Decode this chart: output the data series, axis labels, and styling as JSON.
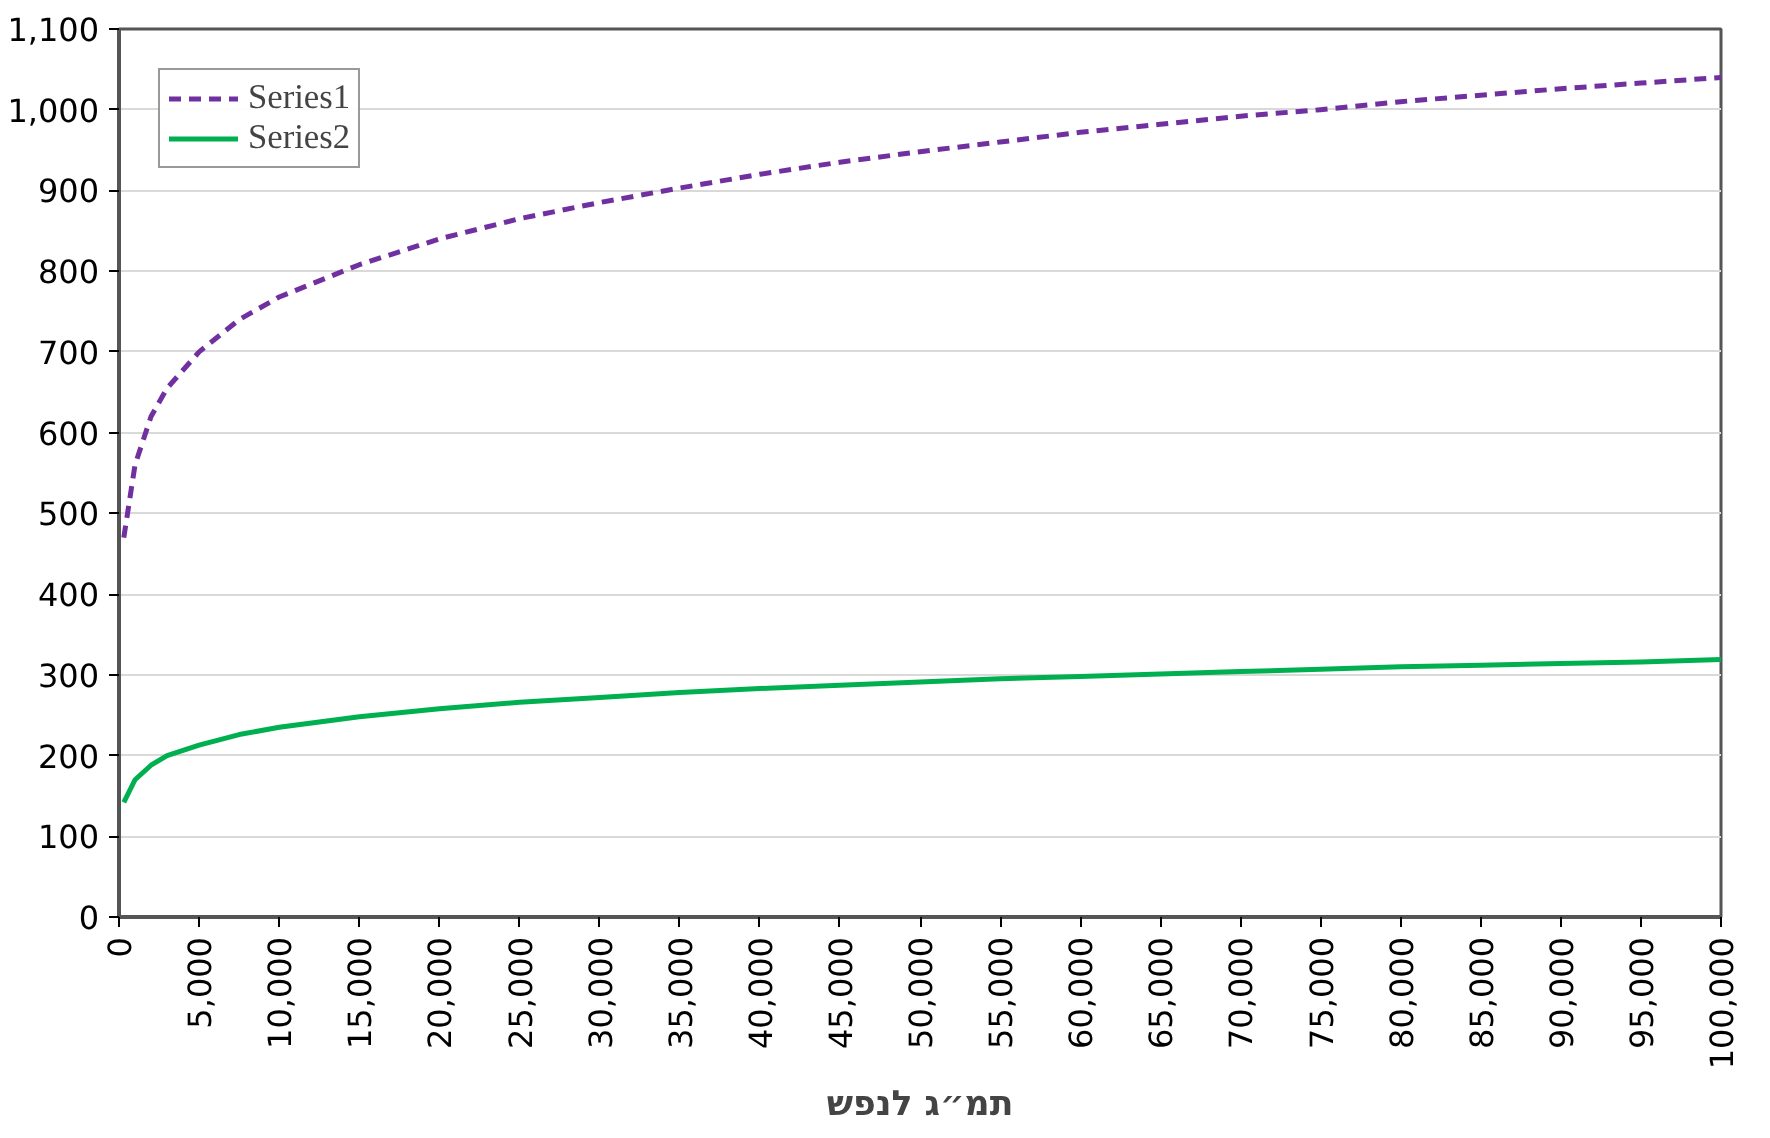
{
  "chart_data": {
    "type": "line",
    "xlabel": "תמ״ג לנפש",
    "x": [
      300,
      1000,
      2000,
      3000,
      5000,
      7500,
      10000,
      15000,
      20000,
      25000,
      30000,
      35000,
      40000,
      45000,
      50000,
      55000,
      60000,
      65000,
      70000,
      75000,
      80000,
      85000,
      90000,
      95000,
      100000
    ],
    "series": [
      {
        "name": "Series1",
        "color": "#7030a0",
        "line_style": "dashed",
        "values": [
          470,
          560,
          620,
          655,
          700,
          740,
          768,
          808,
          840,
          865,
          885,
          903,
          920,
          935,
          948,
          960,
          972,
          982,
          992,
          1000,
          1010,
          1018,
          1026,
          1033,
          1040
        ]
      },
      {
        "name": "Series2",
        "color": "#00b050",
        "line_style": "solid",
        "values": [
          142,
          170,
          188,
          200,
          213,
          226,
          235,
          248,
          258,
          266,
          272,
          278,
          283,
          287,
          291,
          295,
          298,
          301,
          304,
          307,
          310,
          312,
          314,
          316,
          319
        ]
      }
    ],
    "xlim": [
      0,
      100000
    ],
    "xticks": [
      0,
      {
        "value": 5000,
        "label": "5,000"
      },
      {
        "value": 10000,
        "label": "10,000"
      },
      {
        "value": 15000,
        "label": "15,000"
      },
      {
        "value": 20000,
        "label": "20,000"
      },
      {
        "value": 25000,
        "label": "25,000"
      },
      {
        "value": 30000,
        "label": "30,000"
      },
      {
        "value": 35000,
        "label": "35,000"
      },
      {
        "value": 40000,
        "label": "40,000"
      },
      {
        "value": 45000,
        "label": "45,000"
      },
      {
        "value": 50000,
        "label": "50,000"
      },
      {
        "value": 55000,
        "label": "55,000"
      },
      {
        "value": 60000,
        "label": "60,000"
      },
      {
        "value": 65000,
        "label": "65,000"
      },
      {
        "value": 70000,
        "label": "70,000"
      },
      {
        "value": 75000,
        "label": "75,000"
      },
      {
        "value": 80000,
        "label": "80,000"
      },
      {
        "value": 85000,
        "label": "85,000"
      },
      {
        "value": 90000,
        "label": "90,000"
      },
      {
        "value": 95000,
        "label": "95,000"
      },
      {
        "value": 100000,
        "label": "100,000"
      }
    ],
    "ylim": [
      0,
      1100
    ],
    "yticks": [
      0,
      100,
      200,
      300,
      400,
      500,
      600,
      700,
      800,
      900,
      {
        "value": 1000,
        "label": "1,000"
      },
      {
        "value": 1100,
        "label": "1,100"
      }
    ],
    "grid": "y",
    "legend": "top left",
    "marker": "none"
  }
}
